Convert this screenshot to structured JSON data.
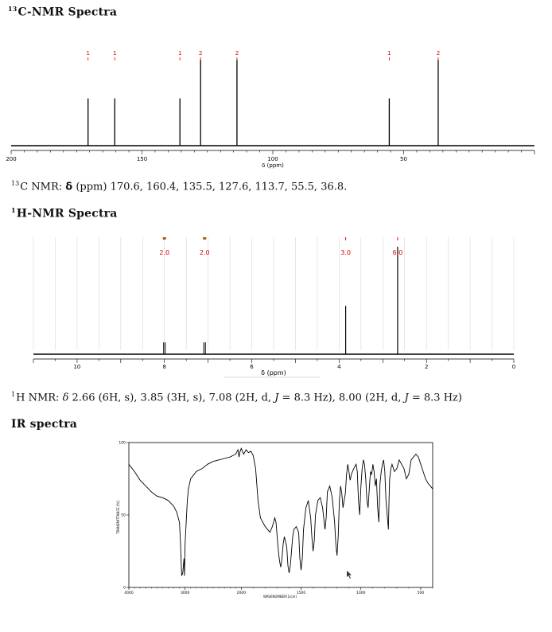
{
  "c13": {
    "heading": "C-NMR Spectra",
    "heading_sup": "13",
    "axis_label": "δ (ppm)",
    "summary_sup": "13",
    "summary_prefix": "C NMR: ",
    "summary_delta": "δ",
    "summary_rest": " (ppm) 170.6, 160.4, 135.5, 127.6, 113.7, 55.5, 36.8."
  },
  "h1": {
    "heading": "H-NMR Spectra",
    "heading_sup": "1",
    "axis_label": "δ (ppm)",
    "summary_sup": "1",
    "summary_prefix": "H NMR: ",
    "summary_delta": "δ",
    "summary_rest": " 2.66 (6H, s), 3.85 (3H, s), 7.08 (2H, d, ",
    "summary_J1": "J",
    "summary_mid": " = 8.3 Hz), 8.00 (2H, d, ",
    "summary_J2": "J",
    "summary_end": " = 8.3 Hz)"
  },
  "ir": {
    "heading": "IR spectra",
    "ylabel": "TRANSMITTANCE [%]",
    "xlabel": "WAVENUMBER(1/cm)"
  },
  "chart_data": [
    {
      "type": "line",
      "name": "13C-NMR",
      "xlabel": "δ (ppm)",
      "xlim": [
        200,
        0
      ],
      "xticks": [
        200,
        150,
        100,
        50
      ],
      "peaks": [
        {
          "ppm": 170.6,
          "height": 0.55,
          "label": "1"
        },
        {
          "ppm": 160.4,
          "height": 0.55,
          "label": "1"
        },
        {
          "ppm": 135.5,
          "height": 0.55,
          "label": "1"
        },
        {
          "ppm": 127.6,
          "height": 1.0,
          "label": "2"
        },
        {
          "ppm": 113.7,
          "height": 1.0,
          "label": "2"
        },
        {
          "ppm": 55.5,
          "height": 0.55,
          "label": "1"
        },
        {
          "ppm": 36.8,
          "height": 1.0,
          "label": "2"
        }
      ]
    },
    {
      "type": "line",
      "name": "1H-NMR",
      "xlabel": "δ (ppm)",
      "xlim": [
        11,
        0
      ],
      "xticks": [
        10,
        8,
        6,
        4,
        2,
        0
      ],
      "peaks": [
        {
          "ppm": 8.0,
          "height": 0.11,
          "integral": "2.0",
          "doublet": true
        },
        {
          "ppm": 7.08,
          "height": 0.11,
          "integral": "2.0",
          "doublet": true
        },
        {
          "ppm": 3.85,
          "height": 0.45,
          "integral": "3.0",
          "doublet": false
        },
        {
          "ppm": 2.66,
          "height": 1.0,
          "integral": "6.0",
          "doublet": false
        }
      ]
    },
    {
      "type": "line",
      "name": "IR",
      "xlabel": "WAVENUMBER(1/cm)",
      "ylabel": "TRANSMITTANCE [%]",
      "xlim": [
        4000,
        400
      ],
      "ylim": [
        0,
        100
      ],
      "xticks": [
        4000,
        3000,
        2000,
        1500,
        1000,
        500
      ],
      "yticks": [
        0,
        50,
        100
      ],
      "points": [
        [
          4000,
          85
        ],
        [
          3900,
          80
        ],
        [
          3800,
          74
        ],
        [
          3700,
          70
        ],
        [
          3600,
          66
        ],
        [
          3500,
          63
        ],
        [
          3400,
          62
        ],
        [
          3300,
          60
        ],
        [
          3250,
          58
        ],
        [
          3200,
          56
        ],
        [
          3150,
          52
        ],
        [
          3100,
          45
        ],
        [
          3080,
          30
        ],
        [
          3060,
          8
        ],
        [
          3040,
          10
        ],
        [
          3020,
          20
        ],
        [
          3010,
          8
        ],
        [
          3000,
          30
        ],
        [
          2980,
          45
        ],
        [
          2960,
          60
        ],
        [
          2940,
          68
        ],
        [
          2900,
          75
        ],
        [
          2800,
          80
        ],
        [
          2700,
          82
        ],
        [
          2600,
          85
        ],
        [
          2500,
          87
        ],
        [
          2400,
          88
        ],
        [
          2300,
          89
        ],
        [
          2200,
          90
        ],
        [
          2150,
          91
        ],
        [
          2100,
          92
        ],
        [
          2060,
          95
        ],
        [
          2040,
          90
        ],
        [
          2020,
          94
        ],
        [
          2000,
          96
        ],
        [
          1980,
          92
        ],
        [
          1960,
          95
        ],
        [
          1940,
          93
        ],
        [
          1920,
          94
        ],
        [
          1900,
          91
        ],
        [
          1880,
          82
        ],
        [
          1860,
          60
        ],
        [
          1840,
          48
        ],
        [
          1820,
          45
        ],
        [
          1800,
          42
        ],
        [
          1780,
          40
        ],
        [
          1760,
          38
        ],
        [
          1740,
          42
        ],
        [
          1720,
          48
        ],
        [
          1710,
          45
        ],
        [
          1700,
          35
        ],
        [
          1690,
          25
        ],
        [
          1680,
          18
        ],
        [
          1670,
          14
        ],
        [
          1660,
          20
        ],
        [
          1650,
          30
        ],
        [
          1640,
          35
        ],
        [
          1620,
          28
        ],
        [
          1610,
          15
        ],
        [
          1600,
          10
        ],
        [
          1590,
          15
        ],
        [
          1580,
          25
        ],
        [
          1570,
          35
        ],
        [
          1560,
          40
        ],
        [
          1540,
          42
        ],
        [
          1520,
          38
        ],
        [
          1510,
          20
        ],
        [
          1500,
          12
        ],
        [
          1490,
          20
        ],
        [
          1480,
          40
        ],
        [
          1460,
          55
        ],
        [
          1440,
          60
        ],
        [
          1420,
          48
        ],
        [
          1410,
          35
        ],
        [
          1400,
          25
        ],
        [
          1390,
          32
        ],
        [
          1380,
          50
        ],
        [
          1360,
          60
        ],
        [
          1340,
          62
        ],
        [
          1320,
          55
        ],
        [
          1300,
          40
        ],
        [
          1290,
          48
        ],
        [
          1280,
          66
        ],
        [
          1260,
          70
        ],
        [
          1240,
          62
        ],
        [
          1220,
          45
        ],
        [
          1210,
          30
        ],
        [
          1200,
          22
        ],
        [
          1190,
          35
        ],
        [
          1180,
          60
        ],
        [
          1170,
          70
        ],
        [
          1160,
          65
        ],
        [
          1150,
          55
        ],
        [
          1130,
          65
        ],
        [
          1120,
          78
        ],
        [
          1110,
          85
        ],
        [
          1100,
          80
        ],
        [
          1090,
          74
        ],
        [
          1080,
          78
        ],
        [
          1060,
          82
        ],
        [
          1040,
          85
        ],
        [
          1030,
          80
        ],
        [
          1020,
          60
        ],
        [
          1010,
          50
        ],
        [
          1000,
          70
        ],
        [
          990,
          82
        ],
        [
          980,
          88
        ],
        [
          970,
          85
        ],
        [
          960,
          75
        ],
        [
          950,
          60
        ],
        [
          940,
          55
        ],
        [
          930,
          68
        ],
        [
          920,
          80
        ],
        [
          910,
          78
        ],
        [
          900,
          85
        ],
        [
          890,
          80
        ],
        [
          880,
          70
        ],
        [
          870,
          75
        ],
        [
          860,
          55
        ],
        [
          850,
          45
        ],
        [
          845,
          60
        ],
        [
          840,
          72
        ],
        [
          830,
          80
        ],
        [
          820,
          85
        ],
        [
          810,
          88
        ],
        [
          800,
          80
        ],
        [
          790,
          60
        ],
        [
          780,
          50
        ],
        [
          770,
          40
        ],
        [
          765,
          60
        ],
        [
          760,
          75
        ],
        [
          750,
          82
        ],
        [
          740,
          85
        ],
        [
          720,
          80
        ],
        [
          700,
          82
        ],
        [
          680,
          88
        ],
        [
          660,
          85
        ],
        [
          640,
          82
        ],
        [
          620,
          75
        ],
        [
          600,
          78
        ],
        [
          580,
          88
        ],
        [
          560,
          90
        ],
        [
          540,
          92
        ],
        [
          520,
          90
        ],
        [
          500,
          85
        ],
        [
          480,
          80
        ],
        [
          460,
          75
        ],
        [
          440,
          72
        ],
        [
          420,
          70
        ],
        [
          400,
          68
        ]
      ]
    }
  ]
}
